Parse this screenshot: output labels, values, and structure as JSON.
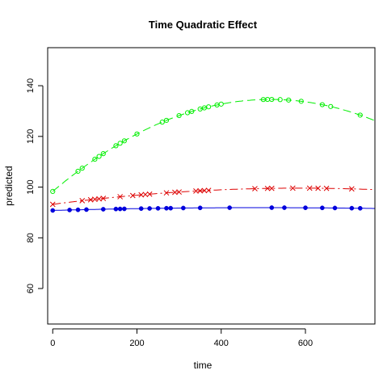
{
  "chart_data": {
    "type": "scatter",
    "title": "Time Quadratic Effect",
    "xlabel": "time",
    "ylabel": "predicted",
    "xlim": [
      -12,
      765
    ],
    "ylim": [
      46,
      155
    ],
    "xticks": [
      0,
      200,
      400,
      600
    ],
    "yticks": [
      60,
      80,
      100,
      120,
      140
    ],
    "grid": false,
    "legend": "none",
    "series": [
      {
        "color": "#00ee00",
        "marker": "open-circle",
        "line": "long-dash",
        "curve": {
          "a": 98.3,
          "b": 0.1405,
          "c": -0.000136
        },
        "x": [
          0,
          60,
          70,
          100,
          110,
          120,
          150,
          160,
          170,
          200,
          260,
          270,
          300,
          320,
          330,
          350,
          360,
          370,
          390,
          400,
          500,
          510,
          520,
          540,
          560,
          590,
          640,
          660,
          730
        ]
      },
      {
        "color": "#dd0000",
        "marker": "cross",
        "line": "dash-dot",
        "curve": {
          "a": 93.2,
          "b": 0.0218,
          "c": -1.86e-05
        },
        "x": [
          0,
          70,
          90,
          100,
          110,
          120,
          160,
          190,
          210,
          220,
          230,
          270,
          290,
          300,
          340,
          350,
          360,
          370,
          480,
          510,
          520,
          570,
          610,
          630,
          650,
          710
        ]
      },
      {
        "color": "#0000dd",
        "marker": "filled-circle",
        "line": "solid",
        "curve": {
          "a": 90.8,
          "b": 0.00445,
          "c": -4.5e-06
        },
        "x": [
          0,
          40,
          60,
          80,
          120,
          150,
          160,
          170,
          210,
          230,
          250,
          270,
          280,
          310,
          350,
          420,
          520,
          550,
          600,
          640,
          670,
          710,
          730
        ]
      }
    ]
  }
}
